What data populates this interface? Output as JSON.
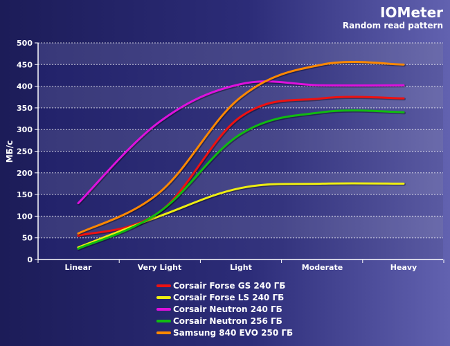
{
  "chart_data": {
    "type": "line",
    "title": "IOMeter",
    "subtitle": "Random read pattern",
    "ylabel": "МБ/с",
    "xlabel": "",
    "categories": [
      "Linear",
      "Very Light",
      "Light",
      "Moderate",
      "Heavy"
    ],
    "ylim": [
      0,
      500
    ],
    "yticks": [
      "0",
      "50",
      "100",
      "150",
      "200",
      "250",
      "300",
      "350",
      "400",
      "450",
      "500"
    ],
    "grid": true,
    "legend_position": "bottom-center",
    "series": [
      {
        "name": "Corsair Forse GS 240 ГБ",
        "color": "#ee1111",
        "values": [
          55,
          110,
          330,
          372,
          372
        ]
      },
      {
        "name": "Corsair Forse LS 240 ГБ",
        "color": "#eeee11",
        "values": [
          28,
          100,
          165,
          175,
          175
        ]
      },
      {
        "name": "Corsair Neutron 240 ГБ",
        "color": "#dd11dd",
        "values": [
          130,
          318,
          405,
          402,
          402
        ]
      },
      {
        "name": "Corsair Neutron 256 ГБ",
        "color": "#11bb11",
        "values": [
          25,
          110,
          290,
          340,
          340
        ]
      },
      {
        "name": "Samsung 840 EVO 250 ГБ",
        "color": "#ff8800",
        "values": [
          60,
          155,
          375,
          450,
          450
        ]
      }
    ]
  }
}
